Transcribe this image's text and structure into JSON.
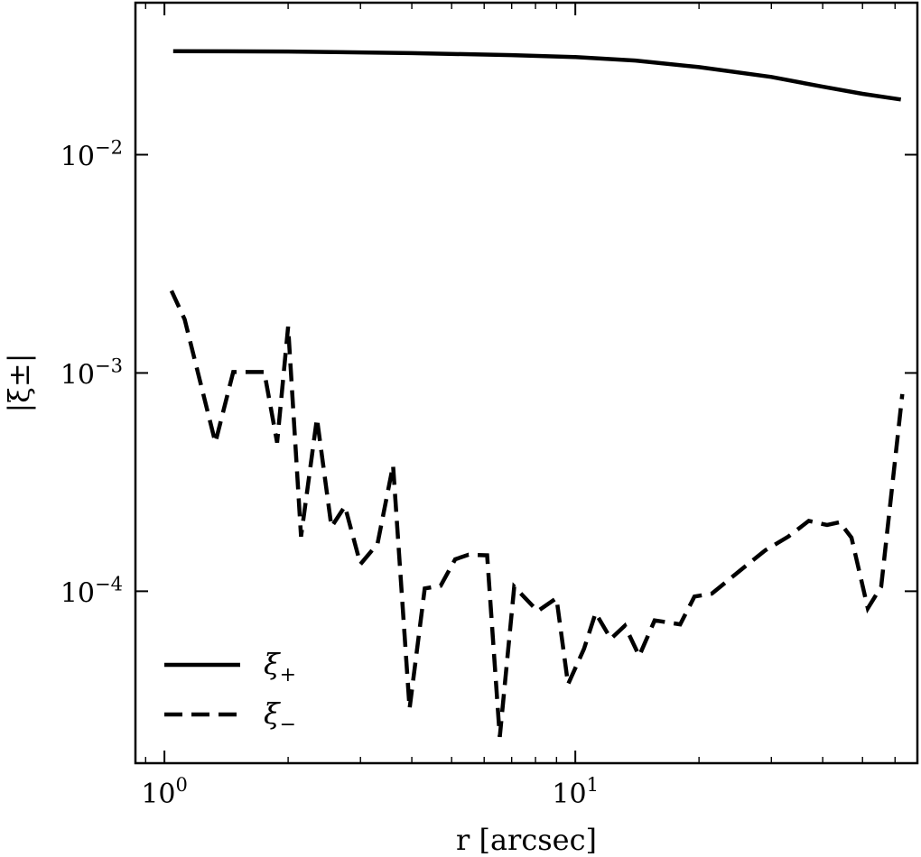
{
  "chart_data": {
    "type": "line",
    "xlabel": "r [arcsec]",
    "ylabel": "|ξ±|",
    "xscale": "log",
    "yscale": "log",
    "xlim": [
      0.85,
      68
    ],
    "ylim": [
      1.63e-05,
      0.0497
    ],
    "grid": false,
    "legend_position": "lower-left",
    "x_ticks": [
      {
        "value": 1,
        "base": "10",
        "exp": "0"
      },
      {
        "value": 10,
        "base": "10",
        "exp": "1"
      }
    ],
    "y_ticks": [
      {
        "value": 0.0001,
        "base": "10",
        "exp": "−4"
      },
      {
        "value": 0.001,
        "base": "10",
        "exp": "−3"
      },
      {
        "value": 0.01,
        "base": "10",
        "exp": "−2"
      }
    ],
    "series": [
      {
        "name": "ξ+",
        "legend_main": "ξ",
        "legend_sub": "+",
        "dash": "solid",
        "color": "#000000",
        "points": [
          [
            1.05,
            0.0298
          ],
          [
            2,
            0.0297
          ],
          [
            4,
            0.0292
          ],
          [
            7,
            0.0286
          ],
          [
            10,
            0.028
          ],
          [
            14,
            0.027
          ],
          [
            20,
            0.0252
          ],
          [
            30,
            0.0227
          ],
          [
            40,
            0.0205
          ],
          [
            50,
            0.019
          ],
          [
            62,
            0.0179
          ]
        ]
      },
      {
        "name": "ξ−",
        "legend_main": "ξ",
        "legend_sub": "−",
        "dash": "dashed",
        "color": "#000000",
        "points": [
          [
            1.04,
            0.00238
          ],
          [
            1.12,
            0.00176
          ],
          [
            1.33,
            0.00048
          ],
          [
            1.47,
            0.00101
          ],
          [
            1.75,
            0.00101
          ],
          [
            1.88,
            0.00048
          ],
          [
            2.0,
            0.00163
          ],
          [
            2.15,
            0.000178
          ],
          [
            2.35,
            0.00062
          ],
          [
            2.55,
            0.000197
          ],
          [
            2.75,
            0.000245
          ],
          [
            3.0,
            0.000133
          ],
          [
            3.3,
            0.000165
          ],
          [
            3.6,
            0.000378
          ],
          [
            3.95,
            2.9e-05
          ],
          [
            4.3,
            0.000103
          ],
          [
            4.7,
            0.000106
          ],
          [
            5.1,
            0.00014
          ],
          [
            5.5,
            0.000147
          ],
          [
            6.1,
            0.000146
          ],
          [
            6.55,
            2.15e-05
          ],
          [
            7.1,
            0.000105
          ],
          [
            8.1,
            8.1e-05
          ],
          [
            9.0,
            9.3e-05
          ],
          [
            9.6,
            3.75e-05
          ],
          [
            10.5,
            5.45e-05
          ],
          [
            11.2,
            7.95e-05
          ],
          [
            12.2,
            6.05e-05
          ],
          [
            13.2,
            6.95e-05
          ],
          [
            14.3,
            5.05e-05
          ],
          [
            15.6,
            7.35e-05
          ],
          [
            18.0,
            7.05e-05
          ],
          [
            19.5,
            9.45e-05
          ],
          [
            21.5,
            9.75e-05
          ],
          [
            25.0,
            0.000123
          ],
          [
            29.0,
            0.000154
          ],
          [
            33.0,
            0.000178
          ],
          [
            37.0,
            0.00021
          ],
          [
            41.0,
            0.000201
          ],
          [
            44.0,
            0.000207
          ],
          [
            47.0,
            0.000176
          ],
          [
            51.5,
            8.35e-05
          ],
          [
            55.5,
            0.000105
          ],
          [
            62.5,
            0.0008
          ]
        ]
      }
    ]
  }
}
